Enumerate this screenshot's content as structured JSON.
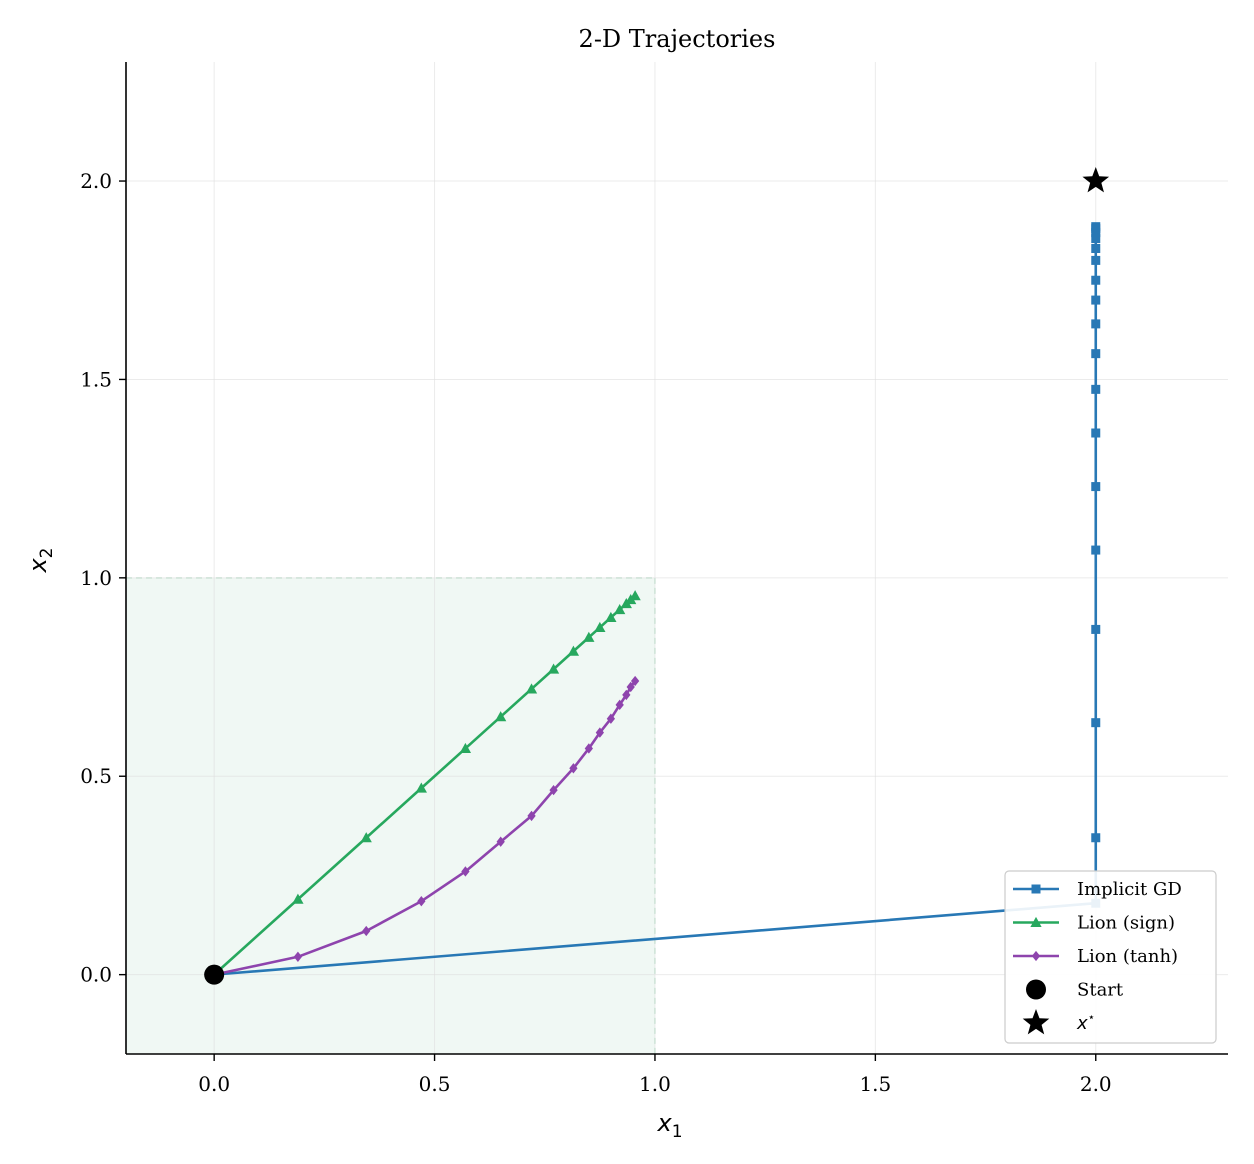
{
  "chart_data": {
    "type": "line",
    "title": "2-D Trajectories",
    "xlabel": "x",
    "xlabel_sub": "1",
    "ylabel": "x",
    "ylabel_sub": "2",
    "xlim": [
      -0.2,
      2.3
    ],
    "ylim": [
      -0.2,
      2.3
    ],
    "xticks": [
      0.0,
      0.5,
      1.0,
      1.5,
      2.0
    ],
    "yticks": [
      0.0,
      0.5,
      1.0,
      1.5,
      2.0
    ],
    "xtick_labels": [
      "0.0",
      "0.5",
      "1.0",
      "1.5",
      "2.0"
    ],
    "ytick_labels": [
      "0.0",
      "0.5",
      "1.0",
      "1.5",
      "2.0"
    ],
    "grid": true,
    "legend_position": "bottom-right",
    "shaded_region": {
      "x": [
        0.0,
        1.0
      ],
      "y": [
        -0.2,
        1.0
      ],
      "color": "#2ca25f"
    },
    "series": [
      {
        "name": "Implicit GD",
        "color": "#2878b5",
        "marker": "square",
        "x": [
          0.0,
          2.0,
          2.0,
          2.0,
          2.0,
          2.0,
          2.0,
          2.0,
          2.0,
          2.0,
          2.0,
          2.0,
          2.0,
          2.0,
          2.0,
          2.0,
          2.0,
          2.0,
          2.0
        ],
        "y": [
          0.0,
          0.18,
          0.345,
          0.635,
          0.87,
          1.07,
          1.23,
          1.365,
          1.475,
          1.565,
          1.64,
          1.7,
          1.75,
          1.8,
          1.83,
          1.855,
          1.87,
          1.88,
          1.885
        ]
      },
      {
        "name": "Lion (sign)",
        "color": "#27a85e",
        "marker": "triangle",
        "x": [
          0.0,
          0.19,
          0.345,
          0.47,
          0.57,
          0.65,
          0.72,
          0.77,
          0.815,
          0.85,
          0.875,
          0.9,
          0.92,
          0.935,
          0.945,
          0.955
        ],
        "y": [
          0.0,
          0.19,
          0.345,
          0.47,
          0.57,
          0.65,
          0.72,
          0.77,
          0.815,
          0.85,
          0.875,
          0.9,
          0.92,
          0.935,
          0.945,
          0.955
        ]
      },
      {
        "name": "Lion (tanh)",
        "color": "#8e44ad",
        "marker": "diamond",
        "x": [
          0.0,
          0.19,
          0.345,
          0.47,
          0.57,
          0.65,
          0.72,
          0.77,
          0.815,
          0.85,
          0.875,
          0.9,
          0.92,
          0.935,
          0.945,
          0.955
        ],
        "y": [
          0.0,
          0.045,
          0.11,
          0.185,
          0.26,
          0.335,
          0.4,
          0.465,
          0.52,
          0.57,
          0.61,
          0.645,
          0.68,
          0.705,
          0.725,
          0.74
        ]
      }
    ],
    "points": [
      {
        "name": "Start",
        "x": 0.0,
        "y": 0.0,
        "marker": "circle",
        "color": "#000000"
      },
      {
        "name": "x",
        "name_sup": "⋆",
        "x": 2.0,
        "y": 2.0,
        "marker": "star",
        "color": "#000000"
      }
    ]
  }
}
